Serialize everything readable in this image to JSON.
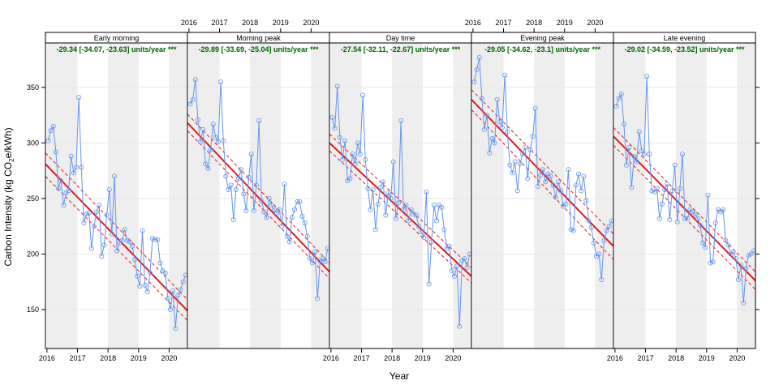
{
  "chart_data": {
    "type": "line",
    "xlabel": "Year",
    "ylabel_main": "Carbon Intensity (kg CO",
    "ylabel_sub": "2",
    "ylabel_end": "e/kWh)",
    "xlim": [
      2015.95,
      2020.6
    ],
    "ylim": [
      115,
      390
    ],
    "x_ticks": [
      2016,
      2017,
      2018,
      2019,
      2020
    ],
    "y_ticks": [
      150,
      200,
      250,
      300,
      350
    ],
    "shaded_years": [
      2016,
      2018,
      2020
    ],
    "colors": {
      "points": "#6495ED",
      "trend": "#E31A1C",
      "annotation": "#006400",
      "shade": "#EEEEEE"
    },
    "panels": [
      {
        "name": "Early morning",
        "annotation": "-29.34 [-34.07, -23.63] units/year ***",
        "trend": {
          "start": 281,
          "end": 149,
          "upper_start": 291,
          "upper_end": 159,
          "lower_start": 270,
          "lower_end": 140
        },
        "values": [
          302,
          311,
          315,
          292,
          259,
          266,
          244,
          255,
          257,
          288,
          273,
          278,
          341,
          278,
          228,
          236,
          237,
          205,
          225,
          238,
          244,
          198,
          208,
          235,
          258,
          218,
          270,
          203,
          210,
          212,
          222,
          212,
          211,
          207,
          195,
          180,
          171,
          221,
          172,
          166,
          183,
          214,
          213,
          213,
          192,
          185,
          183,
          160,
          150,
          167,
          133,
          163,
          168,
          175,
          181
        ]
      },
      {
        "name": "Morning peak",
        "annotation": "-29.89 [-33.69, -25.04] units/year ***",
        "trend": {
          "start": 318,
          "end": 184,
          "upper_start": 326,
          "upper_end": 192,
          "lower_start": 311,
          "lower_end": 178
        },
        "values": [
          335,
          339,
          357,
          321,
          301,
          312,
          281,
          277,
          294,
          317,
          305,
          301,
          355,
          302,
          270,
          258,
          262,
          231,
          258,
          268,
          276,
          254,
          239,
          269,
          290,
          239,
          262,
          320,
          248,
          238,
          233,
          250,
          244,
          240,
          237,
          240,
          225,
          263,
          216,
          211,
          233,
          240,
          247,
          247,
          234,
          228,
          216,
          196,
          192,
          202,
          160,
          194,
          196,
          193,
          205
        ]
      },
      {
        "name": "Day time",
        "annotation": "-27.54 [-32.11, -22.67] units/year ***",
        "trend": {
          "start": 300,
          "end": 180,
          "upper_start": 308,
          "upper_end": 188,
          "lower_start": 293,
          "lower_end": 174
        },
        "values": [
          323,
          313,
          351,
          305,
          285,
          302,
          266,
          268,
          290,
          281,
          300,
          290,
          343,
          285,
          259,
          240,
          258,
          222,
          245,
          260,
          265,
          235,
          255,
          250,
          283,
          232,
          246,
          320,
          240,
          244,
          230,
          240,
          236,
          235,
          225,
          220,
          215,
          256,
          173,
          211,
          244,
          230,
          244,
          242,
          222,
          205,
          207,
          185,
          180,
          189,
          135,
          194,
          196,
          188,
          200
        ]
      },
      {
        "name": "Evening peak",
        "annotation": "-29.05 [-34.62, -23.1] units/year ***",
        "trend": {
          "start": 339,
          "end": 207,
          "upper_start": 348,
          "upper_end": 218,
          "lower_start": 330,
          "lower_end": 195
        },
        "values": [
          355,
          366,
          377,
          340,
          312,
          325,
          291,
          304,
          300,
          339,
          319,
          314,
          361,
          310,
          280,
          273,
          283,
          257,
          281,
          290,
          296,
          268,
          294,
          306,
          331,
          261,
          271,
          276,
          265,
          272,
          270,
          262,
          251,
          265,
          257,
          243,
          245,
          276,
          222,
          221,
          262,
          272,
          257,
          270,
          248,
          230,
          224,
          210,
          198,
          200,
          177,
          212,
          221,
          225,
          230
        ]
      },
      {
        "name": "Late evening",
        "annotation": "-29.02 [-34.59, -23.52] units/year ***",
        "trend": {
          "start": 306,
          "end": 176,
          "upper_start": 314,
          "upper_end": 184,
          "lower_start": 298,
          "lower_end": 168
        },
        "values": [
          333,
          340,
          344,
          317,
          280,
          296,
          260,
          288,
          283,
          310,
          293,
          290,
          360,
          290,
          257,
          256,
          259,
          232,
          245,
          258,
          263,
          231,
          257,
          280,
          229,
          259,
          290,
          232,
          232,
          240,
          238,
          236,
          232,
          226,
          210,
          206,
          253,
          192,
          193,
          228,
          240,
          238,
          240,
          212,
          208,
          200,
          202,
          196,
          177,
          190,
          156,
          187,
          199,
          200,
          203
        ]
      }
    ]
  }
}
